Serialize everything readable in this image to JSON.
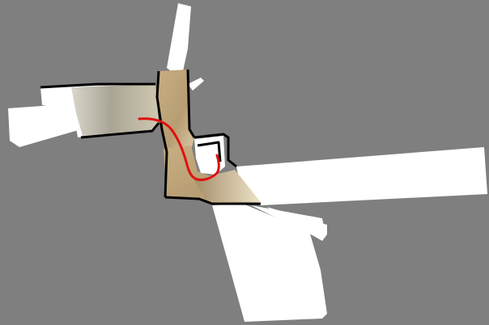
{
  "map": {
    "type": "occupancy-grid-map",
    "colors": {
      "unknown": "#7f7f7f",
      "free_space": "#ffffff",
      "walls": "#000000",
      "camera_texture_floor": "#c2a878",
      "camera_texture_corridor": "#b9b2a2",
      "trajectory": "#e01010"
    },
    "has_trajectory": true,
    "has_text_labels": false
  }
}
